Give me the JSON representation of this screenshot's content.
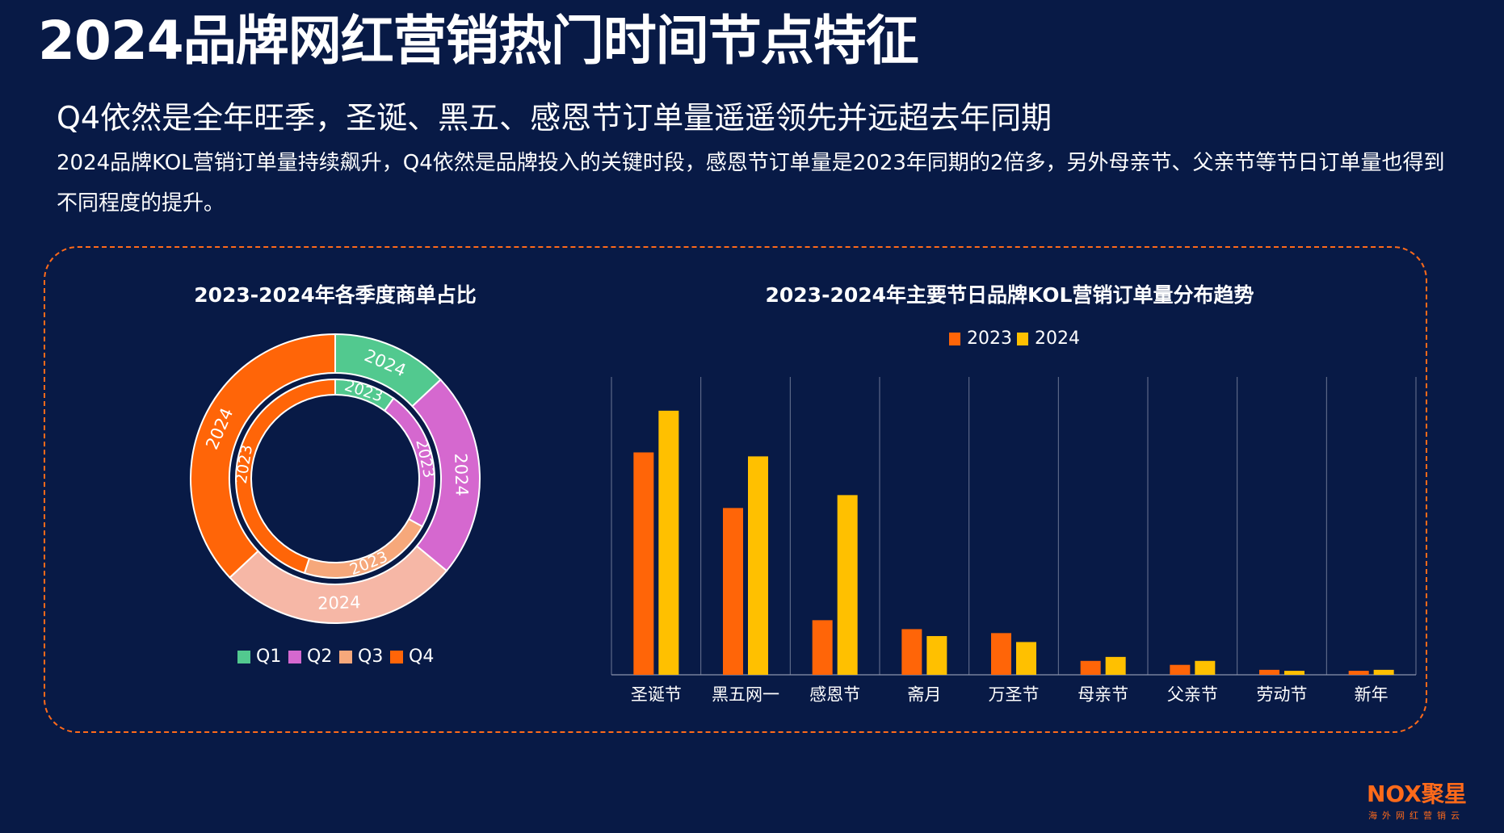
{
  "page": {
    "title": "2024品牌网红营销热门时间节点特征",
    "subtitle": "Q4依然是全年旺季，圣诞、黑五、感恩节订单量遥遥领先并远超去年同期",
    "description": "2024品牌KOL营销订单量持续飙升，Q4依然是品牌投入的关键时段，感恩节订单量是2023年同期的2倍多，另外母亲节、父亲节等节日订单量也得到不同程度的提升。"
  },
  "colors": {
    "background": "#081a46",
    "accent": "#ff6a1a",
    "q1": "#52c98f",
    "q2": "#d568cf",
    "q3": "#f6a87b",
    "q4": "#ff6508",
    "outer_q3": "#f6b7a6",
    "bar_2023": "#ff6508",
    "bar_2024": "#ffc000"
  },
  "chart_data": [
    {
      "type": "pie",
      "title": "2023-2024年各季度商单占比",
      "categories": [
        "Q1",
        "Q2",
        "Q3",
        "Q4"
      ],
      "series": [
        {
          "name": "2023",
          "values": [
            10,
            23,
            22,
            45
          ]
        },
        {
          "name": "2024",
          "values": [
            13,
            23,
            27,
            37
          ]
        }
      ],
      "legend": "bottom"
    },
    {
      "type": "bar",
      "title": "2023-2024年主要节日品牌KOL营销订单量分布趋势",
      "categories": [
        "圣诞节",
        "黑五网一",
        "感恩节",
        "斋月",
        "万圣节",
        "母亲节",
        "父亲节",
        "劳动节",
        "新年"
      ],
      "series": [
        {
          "name": "2023",
          "values": [
            224,
            168,
            55,
            46,
            42,
            14,
            10,
            5,
            4
          ]
        },
        {
          "name": "2024",
          "values": [
            266,
            220,
            181,
            39,
            33,
            18,
            14,
            4,
            5
          ]
        }
      ],
      "ylim": [
        0,
        300
      ],
      "legend": "top"
    }
  ],
  "branding": {
    "logo_text": "NOX聚星",
    "logo_tagline": "海外网红营销云"
  }
}
